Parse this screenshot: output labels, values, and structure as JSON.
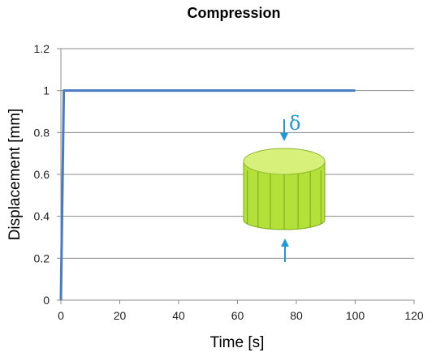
{
  "colors": {
    "series": "#4a7bc0",
    "grid": "#8c8c8c",
    "axis": "#8c8c8c",
    "cylinder_top": "#d6f07a",
    "cylinder_side": "#b4e03a",
    "cylinder_line": "#78a818",
    "arrow": "#1e9ad6"
  },
  "chart_data": {
    "type": "line",
    "title": "Compression",
    "xlabel": "Time [s]",
    "ylabel": "Displacement [mm]",
    "xlim": [
      0,
      120
    ],
    "ylim": [
      0,
      1.2
    ],
    "x_ticks": [
      0,
      20,
      40,
      60,
      80,
      100,
      120
    ],
    "y_ticks": [
      0,
      0.2,
      0.4,
      0.6,
      0.8,
      1,
      1.2
    ],
    "grid": "horizontal",
    "series": [
      {
        "x": [
          0,
          1,
          100
        ],
        "y": [
          0,
          1,
          1
        ]
      }
    ],
    "annotations": [
      {
        "type": "illustration",
        "subject": "cylinder-compression-icon",
        "label": "δ"
      }
    ]
  }
}
